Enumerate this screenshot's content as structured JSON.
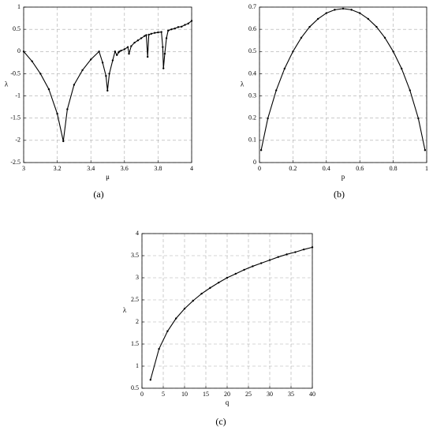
{
  "chart_data": [
    {
      "type": "line",
      "caption": "(a)",
      "x_label": "μ",
      "y_label": "λ",
      "color": "#000000",
      "grid": true,
      "x": [
        3.0,
        3.05,
        3.1,
        3.15,
        3.2,
        3.236,
        3.26,
        3.3,
        3.35,
        3.4,
        3.449,
        3.47,
        3.49,
        3.499,
        3.51,
        3.53,
        3.544,
        3.555,
        3.565,
        3.57,
        3.58,
        3.6,
        3.62,
        3.627,
        3.64,
        3.66,
        3.68,
        3.7,
        3.72,
        3.73,
        3.738,
        3.745,
        3.76,
        3.78,
        3.8,
        3.82,
        3.828,
        3.832,
        3.84,
        3.85,
        3.86,
        3.88,
        3.9,
        3.92,
        3.94,
        3.96,
        3.98,
        4.0
      ],
      "values": [
        0,
        -0.22,
        -0.5,
        -0.85,
        -1.4,
        -2.02,
        -1.3,
        -0.75,
        -0.42,
        -0.18,
        0,
        -0.25,
        -0.55,
        -0.88,
        -0.5,
        -0.2,
        0,
        -0.08,
        -0.02,
        0,
        0.02,
        0.05,
        0.1,
        -0.05,
        0.12,
        0.2,
        0.25,
        0.3,
        0.35,
        0.37,
        -0.12,
        0.38,
        0.4,
        0.42,
        0.43,
        0.44,
        0.1,
        -0.38,
        -0.05,
        0.3,
        0.47,
        0.5,
        0.52,
        0.55,
        0.56,
        0.6,
        0.63,
        0.69
      ],
      "xlim": [
        3,
        4
      ],
      "xticks": [
        3,
        3.2,
        3.4,
        3.6,
        3.8,
        4
      ],
      "ylim": [
        -2.5,
        1
      ],
      "yticks": [
        -2.5,
        -2,
        -1.5,
        -1,
        -0.5,
        0,
        0.5,
        1
      ]
    },
    {
      "type": "line",
      "caption": "(b)",
      "x_label": "p",
      "y_label": "λ",
      "color": "#000000",
      "grid": true,
      "x": [
        0.01,
        0.05,
        0.1,
        0.15,
        0.2,
        0.25,
        0.3,
        0.35,
        0.4,
        0.45,
        0.5,
        0.55,
        0.6,
        0.65,
        0.7,
        0.75,
        0.8,
        0.85,
        0.9,
        0.95,
        0.99
      ],
      "values": [
        0.056,
        0.199,
        0.325,
        0.423,
        0.5,
        0.562,
        0.611,
        0.647,
        0.673,
        0.688,
        0.693,
        0.688,
        0.673,
        0.647,
        0.611,
        0.562,
        0.5,
        0.423,
        0.325,
        0.199,
        0.056
      ],
      "xlim": [
        0,
        1
      ],
      "xticks": [
        0,
        0.2,
        0.4,
        0.6,
        0.8,
        1
      ],
      "ylim": [
        0,
        0.7
      ],
      "yticks": [
        0,
        0.1,
        0.2,
        0.3,
        0.4,
        0.5,
        0.6,
        0.7
      ]
    },
    {
      "type": "line",
      "caption": "(c)",
      "x_label": "q",
      "y_label": "λ",
      "color": "#000000",
      "grid": true,
      "x": [
        2,
        4,
        6,
        8,
        10,
        12,
        14,
        16,
        18,
        20,
        22,
        24,
        26,
        28,
        30,
        32,
        34,
        36,
        38,
        40
      ],
      "values": [
        0.69,
        1.39,
        1.79,
        2.08,
        2.3,
        2.48,
        2.64,
        2.77,
        2.89,
        3.0,
        3.09,
        3.18,
        3.26,
        3.33,
        3.4,
        3.47,
        3.53,
        3.58,
        3.64,
        3.69
      ],
      "xlim": [
        0,
        40
      ],
      "xticks": [
        0,
        5,
        10,
        15,
        20,
        25,
        30,
        35,
        40
      ],
      "ylim": [
        0.5,
        4
      ],
      "yticks": [
        0.5,
        1,
        1.5,
        2,
        2.5,
        3,
        3.5,
        4
      ]
    }
  ]
}
